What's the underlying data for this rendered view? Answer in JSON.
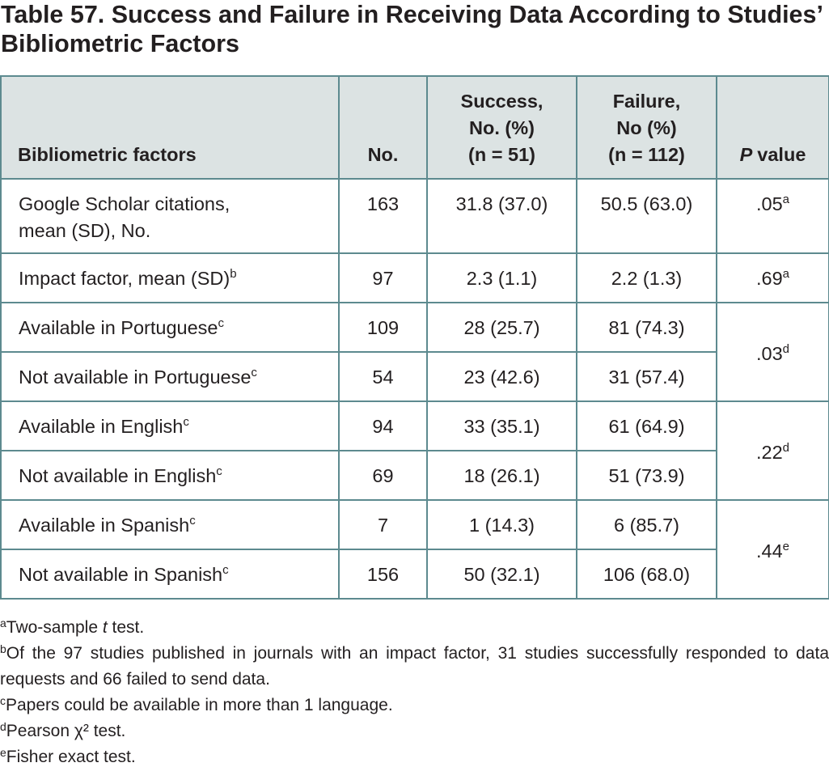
{
  "title": "Table 57. Success and Failure in Receiving Data According to Studies’ Bibliometric Factors",
  "table": {
    "header": {
      "factor": "Bibliometric factors",
      "no": "No.",
      "success": "Success,\nNo. (%)\n(n = 51)",
      "failure": "Failure,\nNo (%)\n(n = 112)",
      "p": {
        "symbol": "P",
        "label": "value"
      }
    },
    "rows": [
      {
        "factor": "Google Scholar citations,\nmean (SD), No.",
        "no": 163,
        "success": "31.8 (37.0)",
        "failure": "50.5 (63.0)",
        "p": {
          "value": ".05",
          "note": "a"
        }
      },
      {
        "factor": "Impact factor, mean (SD)",
        "note": "b",
        "no": 97,
        "success": "2.3 (1.1)",
        "failure": "2.2 (1.3)",
        "p": {
          "value": ".69",
          "note": "a"
        }
      },
      {
        "factor": "Available in Portuguese",
        "note": "c",
        "no": 109,
        "success": "28 (25.7)",
        "failure": "81 (74.3)",
        "p": {
          "value": ".03",
          "note": "d"
        }
      },
      {
        "factor": "Not available in Portuguese",
        "note": "c",
        "no": 54,
        "success": "23 (42.6)",
        "failure": "31 (57.4)"
      },
      {
        "factor": "Available in English",
        "note": "c",
        "no": 94,
        "success": "33 (35.1)",
        "failure": "61 (64.9)",
        "p": {
          "value": ".22",
          "note": "d"
        }
      },
      {
        "factor": "Not available in English",
        "note": "c",
        "no": 69,
        "success": "18 (26.1)",
        "failure": "51 (73.9)"
      },
      {
        "factor": "Available in Spanish",
        "note": "c",
        "no": 7,
        "success": "1 (14.3)",
        "failure": "6 (85.7)",
        "p": {
          "value": ".44",
          "note": "e"
        }
      },
      {
        "factor": "Not available in Spanish",
        "note": "c",
        "no": 156,
        "success": "50 (32.1)",
        "failure": "106 (68.0)"
      }
    ]
  },
  "footnotes": [
    {
      "mark": "a",
      "text": [
        "Two-sample ",
        {
          "italic": "t"
        },
        " test."
      ]
    },
    {
      "mark": "b",
      "text": [
        "Of the 97 studies published in journals with an impact factor, 31 studies successfully responded to data requests and 66 failed to send data."
      ]
    },
    {
      "mark": "c",
      "text": [
        "Papers could be available in more than 1 language."
      ]
    },
    {
      "mark": "d",
      "text": [
        "Pearson χ² test."
      ]
    },
    {
      "mark": "e",
      "text": [
        "Fisher exact test."
      ]
    }
  ]
}
